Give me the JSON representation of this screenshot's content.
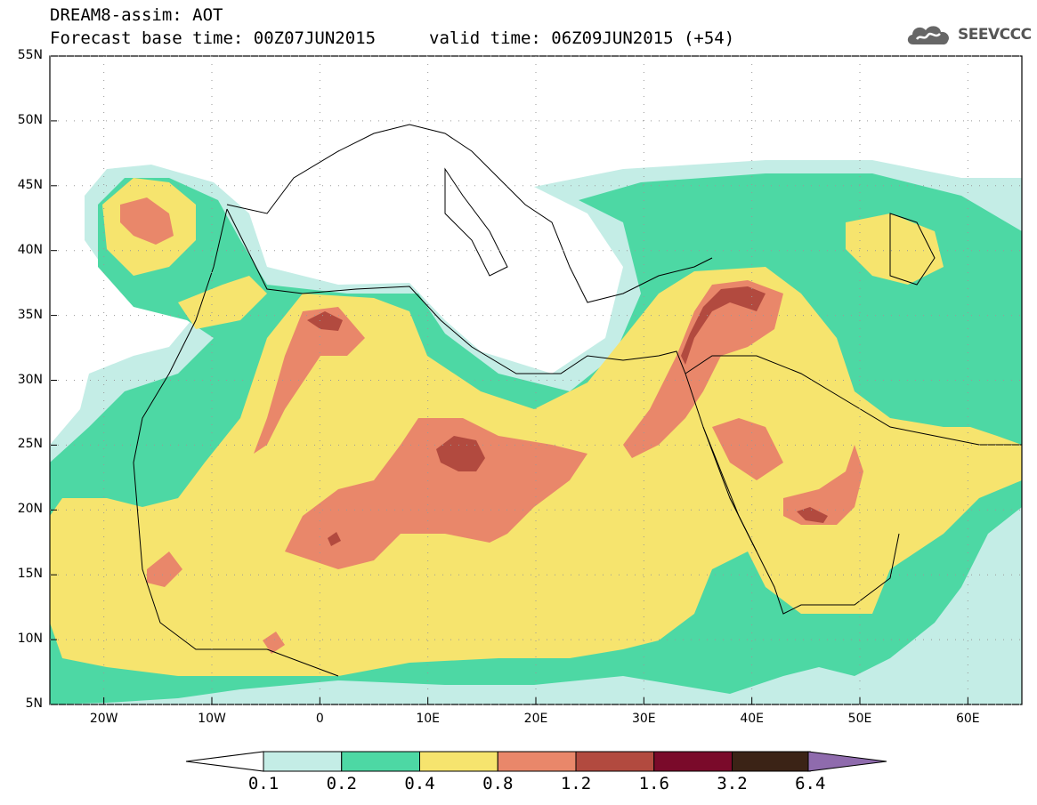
{
  "header": {
    "title": "DREAM8-assim: AOT",
    "base_time": "Forecast base time: 00Z07JUN2015",
    "valid_time": "valid time: 06Z09JUN2015 (+54)",
    "logo_text": "SEEVCCC",
    "logo_icon": "cloud-icon"
  },
  "map": {
    "lat_labels": [
      "55N",
      "50N",
      "45N",
      "40N",
      "35N",
      "30N",
      "25N",
      "20N",
      "15N",
      "10N",
      "5N"
    ],
    "lon_labels": [
      "20W",
      "10W",
      "0",
      "10E",
      "20E",
      "30E",
      "40E",
      "50E",
      "60E"
    ],
    "lat_range": [
      5,
      55
    ],
    "lon_range": [
      -25,
      65
    ]
  },
  "colorbar": {
    "labels": [
      "0.1",
      "0.2",
      "0.4",
      "0.8",
      "1.2",
      "1.6",
      "3.2",
      "6.4"
    ],
    "colors": [
      "#c4ede6",
      "#4dd8a4",
      "#f6e46e",
      "#e9876a",
      "#b24a3f",
      "#7a0a2a",
      "#3b2316",
      "#8f6bad"
    ],
    "under_color": "#ffffff"
  }
}
